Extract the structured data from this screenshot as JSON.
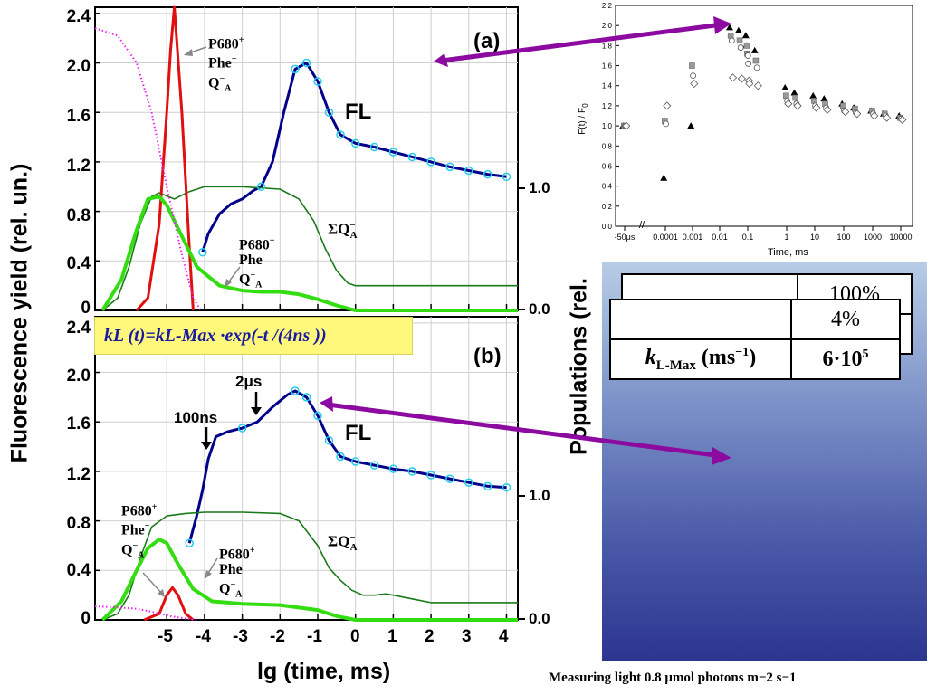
{
  "left_chart": {
    "ylabel": "Fluorescence yield (rel. un.)",
    "xlabel": "lg (time, ms)",
    "right_ylabel": "Populations (rel.",
    "yticks": [
      "2.4",
      "2.0",
      "1.6",
      "1.2",
      "0.8",
      "0.4",
      "0"
    ],
    "right_ticks": [
      "1.0",
      "0.0"
    ],
    "xticks": [
      "-5",
      "-4",
      "-3",
      "-2",
      "-1",
      "0",
      "1",
      "2",
      "3",
      "4"
    ],
    "panel_a": {
      "label": "(a)",
      "fl_label": "FL",
      "sum_label": "ΣQ",
      "sum_sub": "A",
      "sum_sup": "−",
      "state1": [
        "P680",
        "Phe",
        "Q"
      ],
      "state1_sup": [
        "+",
        "−",
        "−"
      ],
      "state2": [
        "P680",
        "Phe",
        "Q"
      ],
      "state2_sup": [
        "+",
        "",
        "−"
      ]
    },
    "panel_b": {
      "label": "(b)",
      "fl_label": "FL",
      "arrow_100ns": "100ns",
      "arrow_2us": "2μs",
      "formula": "kL (t)=kL-Max ·exp(-t /(4ns ))"
    }
  },
  "chart_data": [
    {
      "type": "line",
      "title": "(a)",
      "xlabel": "lg (time, ms)",
      "ylabel": "Fluorescence yield (rel. un.)",
      "xlim": [
        -6.9,
        4.3
      ],
      "ylim": [
        0,
        2.45
      ],
      "series": [
        {
          "name": "FL",
          "x": [
            -4.05,
            -3.9,
            -3.6,
            -3.3,
            -3.0,
            -2.7,
            -2.5,
            -2.2,
            -1.9,
            -1.6,
            -1.3,
            -1.0,
            -0.7,
            -0.4,
            0,
            0.5,
            1,
            1.5,
            2,
            2.5,
            3,
            3.5,
            4
          ],
          "y": [
            0.47,
            0.62,
            0.78,
            0.86,
            0.9,
            0.97,
            1.0,
            1.2,
            1.6,
            1.95,
            2.0,
            1.85,
            1.6,
            1.42,
            1.35,
            1.32,
            1.28,
            1.24,
            1.2,
            1.16,
            1.13,
            1.1,
            1.08
          ]
        },
        {
          "name": "ΣQA−",
          "x": [
            -6.7,
            -6.3,
            -6.0,
            -5.7,
            -5.4,
            -5.2,
            -4.8,
            -4.4,
            -4.0,
            -3.0,
            -2.0,
            -1.5,
            -1.1,
            -0.8,
            -0.5,
            -0.2,
            0,
            0.5,
            1,
            2,
            3,
            4,
            4.3
          ],
          "y": [
            0,
            0.1,
            0.35,
            0.7,
            0.92,
            0.95,
            0.9,
            0.96,
            1.0,
            1.0,
            0.98,
            0.9,
            0.72,
            0.5,
            0.32,
            0.22,
            0.2,
            0.2,
            0.2,
            0.2,
            0.2,
            0.2,
            0.2
          ]
        },
        {
          "name": "P680+ Phe− QA−",
          "x": [
            -5.8,
            -5.5,
            -5.2,
            -5.0,
            -4.9,
            -4.8,
            -4.6,
            -4.4,
            -4.3
          ],
          "y": [
            0,
            0.1,
            0.7,
            1.6,
            2.1,
            2.45,
            1.6,
            0.5,
            0
          ]
        },
        {
          "name": "P680+ Phe QA−",
          "x": [
            -6.7,
            -6.2,
            -5.8,
            -5.5,
            -5.2,
            -5.0,
            -4.6,
            -4.2,
            -3.6,
            -3.0,
            -2.5,
            -2.0,
            -1.5,
            -1.0,
            -0.5,
            0,
            4.3
          ],
          "y": [
            0,
            0.25,
            0.65,
            0.9,
            0.92,
            0.85,
            0.6,
            0.35,
            0.2,
            0.16,
            0.15,
            0.15,
            0.13,
            0.09,
            0.04,
            0,
            0
          ]
        },
        {
          "name": "initial",
          "x": [
            -6.9,
            -6.3,
            -5.8,
            -5.4,
            -5.0,
            -4.6,
            -4.3,
            -4.1
          ],
          "y": [
            2.28,
            2.22,
            2.0,
            1.6,
            1.0,
            0.45,
            0.1,
            0
          ]
        }
      ]
    },
    {
      "type": "line",
      "title": "(b)",
      "xlabel": "lg (time, ms)",
      "ylabel": "Fluorescence yield (rel. un.)",
      "xlim": [
        -6.9,
        4.3
      ],
      "ylim": [
        0,
        2.45
      ],
      "series": [
        {
          "name": "FL",
          "x": [
            -4.4,
            -4.2,
            -4.05,
            -3.9,
            -3.7,
            -3.4,
            -3.0,
            -2.6,
            -2.2,
            -1.8,
            -1.6,
            -1.3,
            -1.0,
            -0.7,
            -0.4,
            0,
            0.5,
            1,
            1.5,
            2,
            2.5,
            3,
            3.5,
            4
          ],
          "y": [
            0.62,
            0.85,
            1.05,
            1.3,
            1.48,
            1.52,
            1.55,
            1.6,
            1.72,
            1.82,
            1.85,
            1.8,
            1.65,
            1.45,
            1.32,
            1.28,
            1.25,
            1.22,
            1.2,
            1.17,
            1.14,
            1.11,
            1.08,
            1.07
          ]
        },
        {
          "name": "ΣQA−",
          "x": [
            -6.7,
            -6.3,
            -6.0,
            -5.7,
            -5.4,
            -5.0,
            -4.5,
            -4.0,
            -3.0,
            -2.0,
            -1.5,
            -1.0,
            -0.7,
            -0.4,
            -0.1,
            0.2,
            0.5,
            0.8,
            1,
            1.5,
            2,
            3,
            4,
            4.3
          ],
          "y": [
            0,
            0.05,
            0.2,
            0.5,
            0.75,
            0.84,
            0.86,
            0.87,
            0.87,
            0.86,
            0.8,
            0.6,
            0.42,
            0.32,
            0.24,
            0.2,
            0.2,
            0.21,
            0.2,
            0.17,
            0.14,
            0.14,
            0.14,
            0.14
          ]
        },
        {
          "name": "P680+ Phe− QA−",
          "x": [
            -5.6,
            -5.2,
            -5.0,
            -4.85,
            -4.7,
            -4.5,
            -4.3
          ],
          "y": [
            0,
            0.05,
            0.2,
            0.26,
            0.2,
            0.05,
            0
          ]
        },
        {
          "name": "P680+ Phe QA−",
          "x": [
            -6.7,
            -6.2,
            -5.8,
            -5.5,
            -5.2,
            -5.0,
            -4.7,
            -4.3,
            -3.8,
            -3.0,
            -2.0,
            -1.0,
            -0.5,
            0,
            4.3
          ],
          "y": [
            0,
            0.15,
            0.4,
            0.58,
            0.65,
            0.62,
            0.45,
            0.25,
            0.15,
            0.13,
            0.12,
            0.08,
            0.03,
            0,
            0
          ]
        },
        {
          "name": "initial",
          "x": [
            -6.9,
            -6.3,
            -5.8,
            -5.3,
            -4.9,
            -4.5,
            -4.2
          ],
          "y": [
            0.11,
            0.1,
            0.09,
            0.06,
            0.03,
            0.01,
            0
          ]
        }
      ]
    },
    {
      "type": "scatter",
      "xlabel": "Time, ms",
      "ylabel": "F(t) / F0",
      "ylim": [
        0,
        2.2
      ],
      "x_tick_labels": [
        "-50μs",
        "0.0001",
        "0.001",
        "0.01",
        "0.1",
        "1",
        "10",
        "100",
        "1000",
        "10000"
      ],
      "y_tick_labels": [
        "0.0",
        "0.2",
        "0.4",
        "0.6",
        "0.8",
        "1.0",
        "1.2",
        "1.4",
        "1.6",
        "1.8",
        "2.0",
        "2.2"
      ],
      "series": [
        {
          "name": "filled triangles",
          "x": [
            "-50μs",
            "0.0001",
            "0.001",
            "0.02",
            "0.04",
            "0.07",
            "0.1",
            "0.14",
            "1",
            "3",
            "10",
            "30",
            "100",
            "300",
            "1000",
            "3000",
            "10000"
          ],
          "y": [
            1.0,
            0.48,
            1.0,
            1.98,
            1.95,
            1.9,
            1.8,
            1.75,
            1.38,
            1.33,
            1.3,
            1.27,
            1.22,
            1.18,
            1.15,
            1.12,
            1.1
          ]
        },
        {
          "name": "gray squares",
          "x": [
            "-50μs",
            "0.0001",
            "0.001",
            "0.02",
            "0.04",
            "0.07",
            "0.1",
            "0.14",
            "1",
            "3",
            "10",
            "30",
            "100",
            "300",
            "1000",
            "3000",
            "10000"
          ],
          "y": [
            1.0,
            1.05,
            1.6,
            1.9,
            1.85,
            1.8,
            1.72,
            1.65,
            1.3,
            1.28,
            1.25,
            1.22,
            1.2,
            1.17,
            1.15,
            1.12,
            1.08
          ]
        },
        {
          "name": "open circles",
          "x": [
            "-50μs",
            "0.0001",
            "0.001",
            "0.02",
            "0.04",
            "0.07",
            "0.1",
            "0.14",
            "1",
            "3",
            "10",
            "30",
            "100",
            "300",
            "1000",
            "3000",
            "10000"
          ],
          "y": [
            1.0,
            1.02,
            1.5,
            1.85,
            1.78,
            1.7,
            1.62,
            1.58,
            1.25,
            1.22,
            1.2,
            1.18,
            1.15,
            1.13,
            1.12,
            1.1,
            1.07
          ]
        },
        {
          "name": "open diamonds",
          "x": [
            "-50μs",
            "0.0001",
            "0.001",
            "0.02",
            "0.04",
            "0.07",
            "0.1",
            "0.14",
            "1",
            "3",
            "10",
            "30",
            "100",
            "300",
            "1000",
            "3000",
            "10000"
          ],
          "y": [
            1.0,
            1.2,
            1.42,
            1.48,
            1.47,
            1.45,
            1.42,
            1.4,
            1.22,
            1.2,
            1.18,
            1.16,
            1.14,
            1.12,
            1.1,
            1.08,
            1.06
          ]
        }
      ]
    }
  ],
  "right_chart": {
    "ylabel_main": "F(t) / F",
    "ylabel_sub": "0",
    "xlabel": "Time, ms",
    "yticks": [
      "0.0",
      "0.2",
      "0.4",
      "0.6",
      "0.8",
      "1.0",
      "1.2",
      "1.4",
      "1.6",
      "1.8",
      "2.0",
      "2.2"
    ],
    "xticks": [
      "-50μs",
      "0.0001",
      "0.001",
      "0.01",
      "0.1",
      "1",
      "10",
      "100",
      "1000",
      "10000"
    ]
  },
  "table": {
    "back_value": "100%",
    "percent": "4%",
    "k_label": "k",
    "k_sub": "L-Max",
    "k_unit": " (ms",
    "k_unit_sup": "−1",
    "k_close": ")",
    "k_value": "6·10",
    "k_value_sup": "5"
  },
  "footer": "Measuring light 0.8 μmol photons m−2 s−1",
  "colors": {
    "fl": "#00008b",
    "sum": "#1a7a1a",
    "green": "#33dd11",
    "red": "#e01010",
    "magenta": "#ee22ee",
    "cyan": "#22ccee",
    "arrow": "#8c0aa0"
  }
}
